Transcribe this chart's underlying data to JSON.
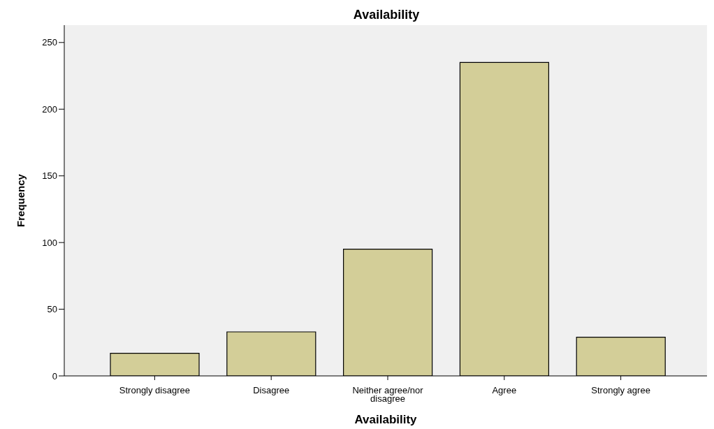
{
  "chart_data": {
    "type": "bar",
    "title": "Availability",
    "xlabel": "Availability",
    "ylabel": "Frequency",
    "categories": [
      "Strongly disagree",
      "Disagree",
      "Neither agree/nor disagree",
      "Agree",
      "Strongly agree"
    ],
    "values": [
      17,
      33,
      95,
      235,
      29
    ],
    "color": "#d3ce98",
    "ylim": [
      0,
      263
    ],
    "yticks": [
      0,
      50,
      100,
      150,
      200,
      250
    ]
  }
}
